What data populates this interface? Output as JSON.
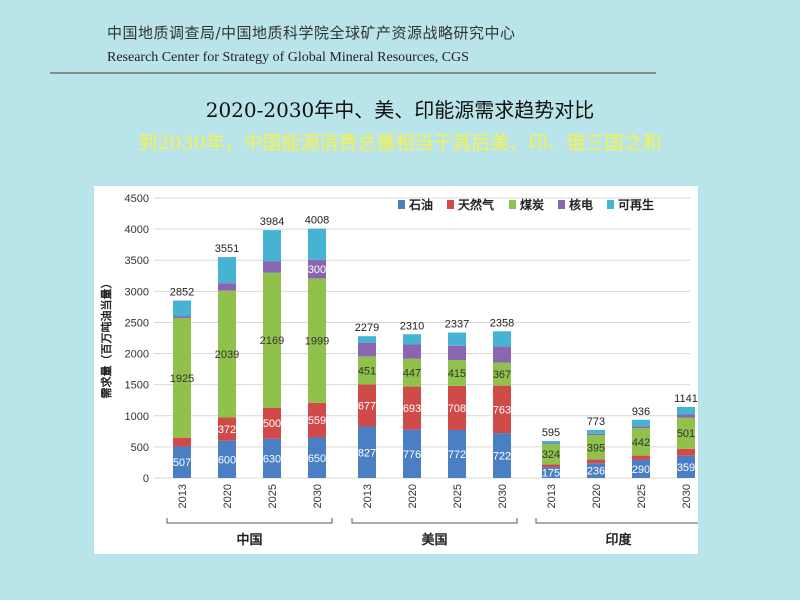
{
  "header": {
    "org_cn": "中国地质调查局/中国地质科学院全球矿产资源战略研究中心",
    "org_en": "Research Center for Strategy of Global Mineral Resources, CGS"
  },
  "slide": {
    "title": "2020-2030年中、美、印能源需求趋势对比",
    "subtitle": "到2030年，中国能源消费总量相当于其后美、印、俄三国之和"
  },
  "colors": {
    "background": "#b9e4e9",
    "subtitle": "#f5f34a",
    "石油": "#4a7fc4",
    "天然气": "#d14a4a",
    "煤炭": "#8fc14c",
    "核电": "#8a66b0",
    "可再生": "#45b3d1"
  },
  "chart_data": {
    "type": "bar",
    "stacked": true,
    "title": "",
    "ylabel": "需求量（百万吨油当量）",
    "ylim": [
      0,
      4500
    ],
    "yticks": [
      0,
      500,
      1000,
      1500,
      2000,
      2500,
      3000,
      3500,
      4000,
      4500
    ],
    "grid": true,
    "legend_position": "top-right",
    "groups": [
      {
        "name": "中国",
        "years": [
          "2013",
          "2020",
          "2025",
          "2030"
        ]
      },
      {
        "name": "美国",
        "years": [
          "2013",
          "2020",
          "2025",
          "2030"
        ]
      },
      {
        "name": "印度",
        "years": [
          "2013",
          "2020",
          "2025",
          "2030"
        ]
      }
    ],
    "categories": [
      "2013",
      "2020",
      "2025",
      "2030",
      "2013",
      "2020",
      "2025",
      "2030",
      "2013",
      "2020",
      "2025",
      "2030"
    ],
    "series": [
      {
        "name": "石油",
        "values": [
          507,
          600,
          630,
          650,
          827,
          776,
          772,
          722,
          175,
          236,
          290,
          359
        ]
      },
      {
        "name": "天然气",
        "values": [
          140,
          372,
          500,
          559,
          677,
          693,
          708,
          763,
          45,
          60,
          70,
          110
        ]
      },
      {
        "name": "煤炭",
        "values": [
          1925,
          2039,
          2169,
          1999,
          451,
          447,
          415,
          367,
          324,
          395,
          442,
          501
        ]
      },
      {
        "name": "核电",
        "values": [
          30,
          120,
          180,
          300,
          220,
          230,
          230,
          260,
          10,
          20,
          30,
          50
        ]
      },
      {
        "name": "可再生",
        "values": [
          250,
          420,
          505,
          500,
          104,
          164,
          212,
          246,
          41,
          62,
          104,
          121
        ]
      }
    ],
    "labeled": {
      "石油": [
        507,
        600,
        630,
        650,
        827,
        776,
        772,
        722,
        175,
        236,
        290,
        359
      ],
      "天然气": [
        null,
        372,
        500,
        559,
        677,
        693,
        708,
        763,
        null,
        null,
        null,
        null
      ],
      "煤炭": [
        1925,
        2039,
        2169,
        1999,
        451,
        447,
        415,
        367,
        324,
        395,
        442,
        501
      ],
      "核电": [
        null,
        null,
        null,
        300,
        null,
        null,
        null,
        null,
        null,
        null,
        null,
        null
      ]
    },
    "totals": [
      2852,
      3551,
      3984,
      4008,
      2279,
      2310,
      2337,
      2358,
      595,
      773,
      936,
      1141
    ]
  }
}
